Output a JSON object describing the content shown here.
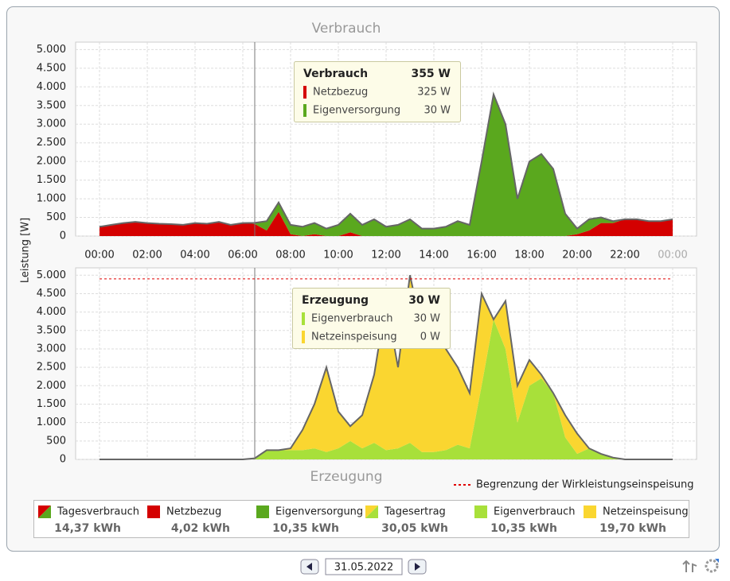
{
  "chart_data": [
    {
      "type": "stacked-area",
      "title": "Verbrauch",
      "ylabel": "Leistung [W]",
      "x": [
        0,
        0.5,
        1,
        1.5,
        2,
        2.5,
        3,
        3.5,
        4,
        4.5,
        5,
        5.5,
        6,
        6.5,
        7,
        7.5,
        8,
        8.5,
        9,
        9.5,
        10,
        10.5,
        11,
        11.5,
        12,
        12.5,
        13,
        13.5,
        14,
        14.5,
        15,
        15.5,
        16,
        16.5,
        17,
        17.5,
        18,
        18.5,
        19,
        19.5,
        20,
        20.5,
        21,
        21.5,
        22,
        22.5,
        23,
        23.5,
        24
      ],
      "series": [
        {
          "name": "Netzbezug",
          "color": "#d40000",
          "values": [
            250,
            300,
            350,
            380,
            350,
            330,
            320,
            300,
            350,
            330,
            380,
            300,
            350,
            325,
            150,
            650,
            50,
            0,
            50,
            0,
            0,
            100,
            0,
            0,
            0,
            0,
            0,
            0,
            0,
            0,
            0,
            0,
            0,
            0,
            0,
            0,
            0,
            0,
            0,
            0,
            50,
            150,
            350,
            350,
            450,
            450,
            400,
            400,
            450
          ]
        },
        {
          "name": "Eigenversorgung",
          "color": "#5aa81e",
          "values": [
            0,
            0,
            0,
            0,
            0,
            0,
            0,
            0,
            0,
            0,
            0,
            0,
            0,
            30,
            250,
            250,
            250,
            250,
            300,
            200,
            300,
            500,
            300,
            450,
            250,
            300,
            450,
            200,
            200,
            250,
            400,
            300,
            2000,
            3800,
            3000,
            1000,
            2000,
            2200,
            1800,
            600,
            150,
            300,
            150,
            50,
            0,
            0,
            0,
            0,
            0
          ]
        }
      ],
      "xlim": [
        -1,
        25
      ],
      "xticks": [
        {
          "value": 0,
          "label": "00:00"
        },
        {
          "value": 2,
          "label": "02:00"
        },
        {
          "value": 4,
          "label": "04:00"
        },
        {
          "value": 6,
          "label": "06:00"
        },
        {
          "value": 8,
          "label": "08:00"
        },
        {
          "value": 10,
          "label": "10:00"
        },
        {
          "value": 12,
          "label": "12:00"
        },
        {
          "value": 14,
          "label": "14:00"
        },
        {
          "value": 16,
          "label": "16:00"
        },
        {
          "value": 18,
          "label": "18:00"
        },
        {
          "value": 20,
          "label": "20:00"
        },
        {
          "value": 22,
          "label": "22:00"
        },
        {
          "value": 24,
          "label": "00:00"
        }
      ],
      "ylim": [
        0,
        5200
      ],
      "yticks": [
        0,
        {
          "value": 500,
          "label": "500"
        },
        {
          "value": 1000,
          "label": "1.000"
        },
        {
          "value": 1500,
          "label": "1.500"
        },
        {
          "value": 2000,
          "label": "2.000"
        },
        {
          "value": 2500,
          "label": "2.500"
        },
        {
          "value": 3000,
          "label": "3.000"
        },
        {
          "value": 3500,
          "label": "3.500"
        },
        {
          "value": 4000,
          "label": "4.000"
        },
        {
          "value": 4500,
          "label": "4.500"
        },
        {
          "value": 5000,
          "label": "5.000"
        }
      ],
      "grid": true,
      "outline_color": "#666666",
      "cursor_x": 6.5,
      "tooltip": {
        "title": "Verbrauch",
        "total": "355 W",
        "rows": [
          {
            "name": "Netzbezug",
            "value": "325 W",
            "color": "#d40000"
          },
          {
            "name": "Eigenversorgung",
            "value": "30 W",
            "color": "#5aa81e"
          }
        ]
      }
    },
    {
      "type": "stacked-area",
      "title": "Erzeugung",
      "x": [
        0,
        0.5,
        1,
        1.5,
        2,
        2.5,
        3,
        3.5,
        4,
        4.5,
        5,
        5.5,
        6,
        6.5,
        7,
        7.5,
        8,
        8.5,
        9,
        9.5,
        10,
        10.5,
        11,
        11.5,
        12,
        12.5,
        13,
        13.5,
        14,
        14.5,
        15,
        15.5,
        16,
        16.5,
        17,
        17.5,
        18,
        18.5,
        19,
        19.5,
        20,
        20.5,
        21,
        21.5,
        22,
        22.5,
        23,
        23.5,
        24
      ],
      "series": [
        {
          "name": "Eigenverbrauch",
          "color": "#a8e03a",
          "values": [
            0,
            0,
            0,
            0,
            0,
            0,
            0,
            0,
            0,
            0,
            0,
            0,
            0,
            30,
            250,
            250,
            250,
            250,
            300,
            200,
            300,
            500,
            300,
            450,
            250,
            300,
            450,
            200,
            200,
            250,
            400,
            300,
            2000,
            3800,
            3000,
            1000,
            2000,
            2200,
            1800,
            600,
            150,
            300,
            150,
            50,
            0,
            0,
            0,
            0,
            0
          ]
        },
        {
          "name": "Netzeinspeisung",
          "color": "#fad630",
          "values": [
            0,
            0,
            0,
            0,
            0,
            0,
            0,
            0,
            0,
            0,
            0,
            0,
            0,
            0,
            0,
            0,
            50,
            550,
            1200,
            2300,
            1000,
            400,
            900,
            1850,
            4050,
            2200,
            4550,
            3300,
            3600,
            2750,
            2100,
            1500,
            2500,
            0,
            1300,
            1000,
            700,
            100,
            0,
            600,
            550,
            0,
            0,
            0,
            0,
            0,
            0,
            0,
            0
          ]
        }
      ],
      "xlim": [
        -1,
        25
      ],
      "ylim": [
        0,
        5200
      ],
      "yticks": [
        0,
        {
          "value": 500,
          "label": "500"
        },
        {
          "value": 1000,
          "label": "1.000"
        },
        {
          "value": 1500,
          "label": "1.500"
        },
        {
          "value": 2000,
          "label": "2.000"
        },
        {
          "value": 2500,
          "label": "2.500"
        },
        {
          "value": 3000,
          "label": "3.000"
        },
        {
          "value": 3500,
          "label": "3.500"
        },
        {
          "value": 4000,
          "label": "4.000"
        },
        {
          "value": 4500,
          "label": "4.500"
        },
        {
          "value": 5000,
          "label": "5.000"
        }
      ],
      "grid": true,
      "outline_color": "#666666",
      "cursor_x": 6.5,
      "limit": {
        "value": 4900,
        "label": "Begrenzung der Wirkleistungseinspeisung",
        "color": "#e00000"
      },
      "tooltip": {
        "title": "Erzeugung",
        "total": "30 W",
        "rows": [
          {
            "name": "Eigenverbrauch",
            "value": "30 W",
            "color": "#a8e03a"
          },
          {
            "name": "Netzeinspeisung",
            "value": "0 W",
            "color": "#fad630"
          }
        ]
      }
    }
  ],
  "summary": [
    {
      "label": "Tagesverbrauch",
      "value": "14,37 kWh",
      "colors": [
        "#d40000",
        "#5aa81e"
      ]
    },
    {
      "label": "Netzbezug",
      "value": "4,02 kWh",
      "colors": [
        "#d40000"
      ]
    },
    {
      "label": "Eigenversorgung",
      "value": "10,35 kWh",
      "colors": [
        "#5aa81e"
      ]
    },
    {
      "label": "Tagesertrag",
      "value": "30,05 kWh",
      "colors": [
        "#fad630",
        "#a8e03a"
      ]
    },
    {
      "label": "Eigenverbrauch",
      "value": "10,35 kWh",
      "colors": [
        "#a8e03a"
      ]
    },
    {
      "label": "Netzeinspeisung",
      "value": "19,70 kWh",
      "colors": [
        "#fad630"
      ]
    }
  ],
  "navigation": {
    "date": "31.05.2022"
  }
}
